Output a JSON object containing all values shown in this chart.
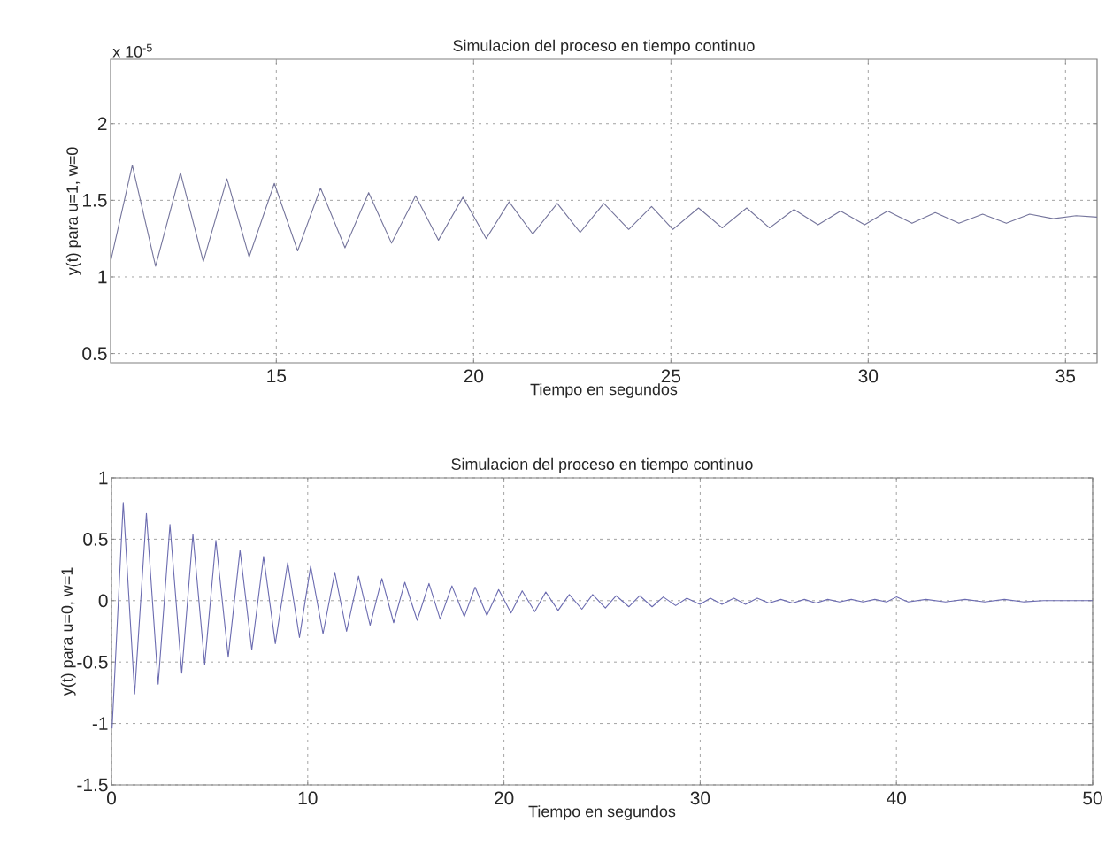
{
  "chart_data": [
    {
      "type": "line",
      "title": "Simulacion del proceso en tiempo continuo",
      "xlabel": "Tiempo en segundos",
      "ylabel": "y(t) para u=1, w=0",
      "annotations": [
        "x 10$^{-5}$"
      ],
      "xlim": [
        10.8,
        35.8
      ],
      "ylim": [
        0.44,
        2.42
      ],
      "xticks": [
        15,
        20,
        25,
        30,
        35
      ],
      "yticks": [
        0.5,
        1,
        1.5,
        2
      ],
      "grid": true,
      "line_style": "solid",
      "marker": "none",
      "series": [
        {
          "color": "#75759c",
          "x": [
            10.8,
            11.35,
            11.94,
            12.57,
            13.15,
            13.75,
            14.31,
            14.95,
            15.54,
            16.12,
            16.74,
            17.34,
            17.92,
            18.53,
            19.11,
            19.73,
            20.32,
            20.9,
            21.5,
            22.12,
            22.7,
            23.3,
            23.93,
            24.51,
            25.05,
            25.7,
            26.3,
            26.92,
            27.5,
            28.12,
            28.73,
            29.3,
            29.91,
            30.49,
            31.11,
            31.7,
            32.3,
            32.9,
            33.5,
            34.09,
            34.69,
            35.27,
            35.8
          ],
          "values": [
            1.1,
            1.73,
            1.07,
            1.68,
            1.1,
            1.64,
            1.13,
            1.61,
            1.17,
            1.58,
            1.19,
            1.55,
            1.22,
            1.53,
            1.24,
            1.52,
            1.25,
            1.49,
            1.28,
            1.48,
            1.29,
            1.48,
            1.31,
            1.46,
            1.31,
            1.45,
            1.32,
            1.45,
            1.32,
            1.44,
            1.34,
            1.43,
            1.34,
            1.43,
            1.35,
            1.42,
            1.35,
            1.41,
            1.35,
            1.41,
            1.38,
            1.4,
            1.39
          ]
        }
      ]
    },
    {
      "type": "line",
      "title": "Simulacion del proceso en tiempo continuo",
      "xlabel": "Tiempo en segundos",
      "ylabel": "y(t) para u=0, w=1",
      "xlim": [
        0,
        50
      ],
      "ylim": [
        -1.5,
        1
      ],
      "xticks": [
        0,
        10,
        20,
        30,
        40,
        50
      ],
      "yticks": [
        -1.5,
        -1,
        -0.5,
        0,
        0.5,
        1
      ],
      "grid": true,
      "line_style": "solid",
      "marker": "none",
      "series": [
        {
          "color": "#6b6bb0",
          "x": [
            0.03,
            0.6,
            1.18,
            1.78,
            2.38,
            2.98,
            3.58,
            4.15,
            4.75,
            5.32,
            5.95,
            6.55,
            7.15,
            7.75,
            8.35,
            8.98,
            9.58,
            10.15,
            10.78,
            11.38,
            11.98,
            12.59,
            13.18,
            13.78,
            14.38,
            14.95,
            15.58,
            16.18,
            16.75,
            17.35,
            17.98,
            18.53,
            19.13,
            19.73,
            20.36,
            20.93,
            21.57,
            22.13,
            22.76,
            23.33,
            23.97,
            24.52,
            25.17,
            25.72,
            26.37,
            26.92,
            27.55,
            28.12,
            28.75,
            29.32,
            29.99,
            30.52,
            31.11,
            31.72,
            32.31,
            32.91,
            33.51,
            34.11,
            34.71,
            35.31,
            35.9,
            36.5,
            37.1,
            37.7,
            38.3,
            38.9,
            39.5,
            40.0,
            40.6,
            41.5,
            42.5,
            43.5,
            44.5,
            45.5,
            46.5,
            47.5,
            50
          ],
          "values": [
            -1.04,
            0.8,
            -0.76,
            0.71,
            -0.68,
            0.62,
            -0.59,
            0.54,
            -0.52,
            0.49,
            -0.46,
            0.41,
            -0.4,
            0.36,
            -0.35,
            0.31,
            -0.3,
            0.28,
            -0.27,
            0.23,
            -0.25,
            0.2,
            -0.2,
            0.18,
            -0.18,
            0.15,
            -0.16,
            0.14,
            -0.15,
            0.12,
            -0.13,
            0.11,
            -0.12,
            0.09,
            -0.1,
            0.08,
            -0.09,
            0.07,
            -0.08,
            0.05,
            -0.07,
            0.05,
            -0.06,
            0.04,
            -0.05,
            0.04,
            -0.05,
            0.03,
            -0.04,
            0.02,
            -0.03,
            0.02,
            -0.03,
            0.02,
            -0.03,
            0.02,
            -0.02,
            0.01,
            -0.02,
            0.01,
            -0.02,
            0.01,
            -0.01,
            0.01,
            -0.01,
            0.01,
            -0.01,
            0.03,
            -0.01,
            0.01,
            -0.01,
            0.01,
            -0.01,
            0.01,
            -0.01,
            0,
            0
          ]
        }
      ]
    }
  ]
}
